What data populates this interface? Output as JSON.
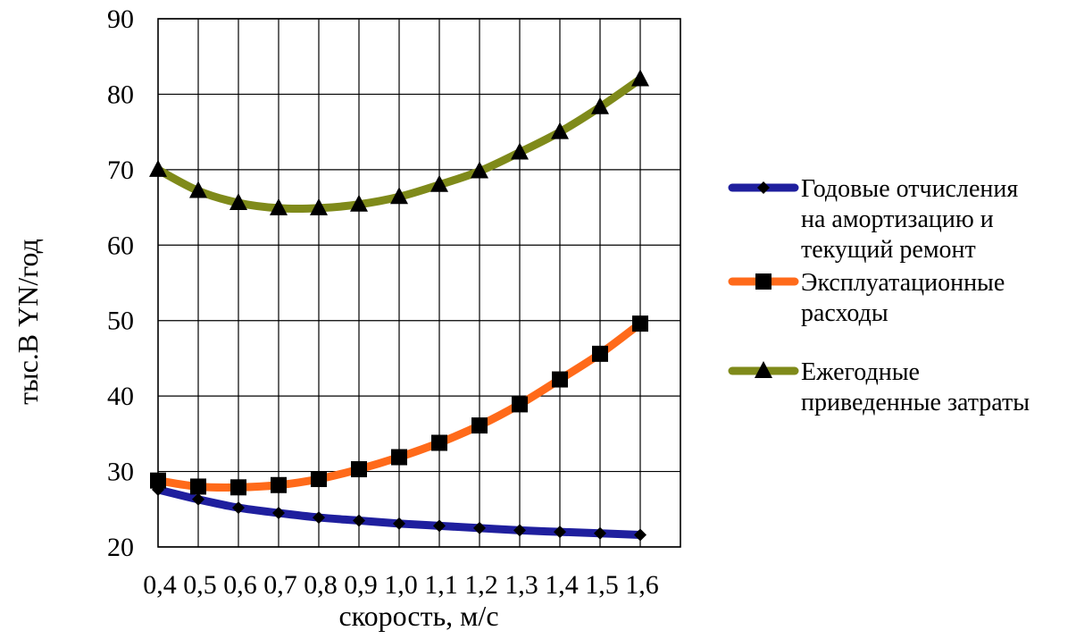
{
  "chart_data": {
    "type": "line",
    "x": [
      "0,4",
      "0,5",
      "0,6",
      "0,7",
      "0,8",
      "0,9",
      "1,0",
      "1,1",
      "1,2",
      "1,3",
      "1,4",
      "1,5",
      "1,6"
    ],
    "xlabel": "скорость, м/с",
    "ylabel": "тыс.В YN/год",
    "ylim": [
      20,
      90
    ],
    "yticks": [
      "20",
      "30",
      "40",
      "50",
      "60",
      "70",
      "80",
      "90"
    ],
    "grid": true,
    "legend_position": "right",
    "series": [
      {
        "name": "Годовые отчисления на амортизацию и текущий ремонт",
        "legend_lines": [
          "Годовые отчисления",
          "на амортизацию и",
          "текущий ремонт"
        ],
        "color": "#1f1f9e",
        "marker": "diamond",
        "values": [
          27.6,
          26.3,
          25.2,
          24.5,
          23.9,
          23.5,
          23.1,
          22.8,
          22.5,
          22.2,
          22.0,
          21.8,
          21.6
        ]
      },
      {
        "name": "Эксплуатационные расходы",
        "legend_lines": [
          "Эксплуатационные",
          "расходы"
        ],
        "color": "#ff6a1a",
        "marker": "square",
        "values": [
          28.8,
          28.0,
          27.9,
          28.2,
          29.0,
          30.3,
          31.9,
          33.8,
          36.1,
          38.9,
          42.2,
          45.6,
          49.6
        ]
      },
      {
        "name": "Ежегодные приведенные затраты",
        "legend_lines": [
          "Ежегодные",
          "приведенные затраты"
        ],
        "color": "#7f8a1a",
        "marker": "triangle",
        "values": [
          70.0,
          67.2,
          65.6,
          64.9,
          64.9,
          65.4,
          66.4,
          68.0,
          69.8,
          72.3,
          75.0,
          78.3,
          82.0
        ]
      }
    ]
  }
}
